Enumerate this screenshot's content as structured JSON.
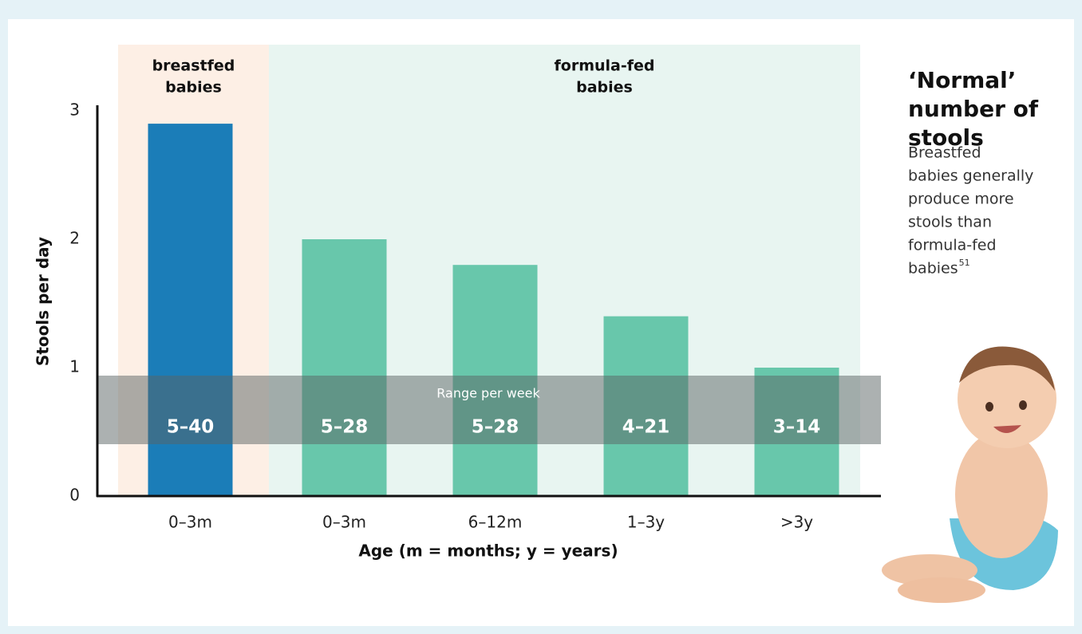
{
  "chart_data": {
    "type": "bar",
    "categories": [
      "0–3m",
      "0–3m",
      "6–12m",
      "1–3y",
      ">3y"
    ],
    "values": [
      2.9,
      2.0,
      1.8,
      1.4,
      1.0
    ],
    "colors": [
      "#1b7db8",
      "#68c7ab",
      "#68c7ab",
      "#68c7ab",
      "#68c7ab"
    ],
    "ylim": [
      0,
      3
    ],
    "yticks": [
      0,
      1,
      2,
      3
    ],
    "y_label": "Stools per day",
    "x_label": "Age (m = months; y = years)",
    "groups": [
      {
        "label_lines": [
          "breastfed",
          "babies"
        ],
        "color": "#fdefe5"
      },
      {
        "label_lines": [
          "formula-fed",
          "babies"
        ],
        "color": "#e8f5f1"
      }
    ],
    "range_title": "Range per week",
    "range_labels": [
      "5–40",
      "5–28",
      "5–28",
      "4–21",
      "3–14"
    ]
  },
  "sidebar": {
    "title_lines": [
      "‘Normal’",
      "number of",
      "stools"
    ],
    "body_lines": [
      "Breastfed",
      "babies generally",
      "produce more",
      "stools than",
      "formula-fed",
      "babies"
    ],
    "footnote": "51"
  }
}
